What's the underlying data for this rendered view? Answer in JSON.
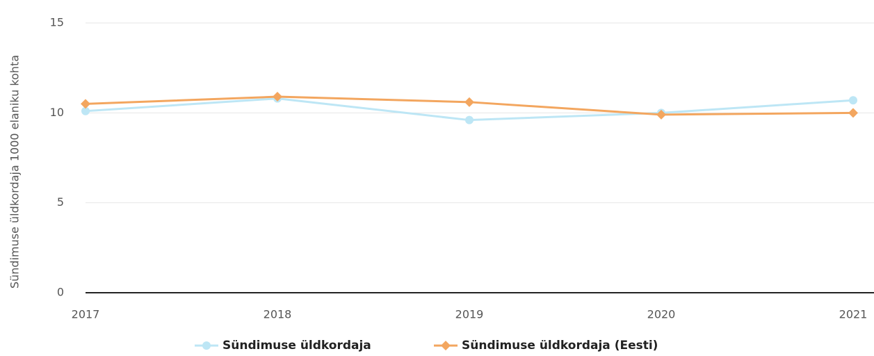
{
  "chart_data": {
    "type": "line",
    "y_label": "Sündimuse üldkordaja 1000 elaniku kohta",
    "categories": [
      "2017",
      "2018",
      "2019",
      "2020",
      "2021"
    ],
    "series": [
      {
        "name": "Sündimuse üldkordaja",
        "color": "#bde6f5",
        "values": [
          10.1,
          10.8,
          9.6,
          10.0,
          10.7
        ]
      },
      {
        "name": "Sündimuse üldkordaja (Eesti)",
        "color": "#f3a65f",
        "values": [
          10.5,
          10.9,
          10.6,
          9.9,
          10.0
        ]
      }
    ],
    "ylim": [
      0,
      15
    ],
    "yticks": [
      0,
      5,
      10,
      15
    ],
    "grid": true
  }
}
